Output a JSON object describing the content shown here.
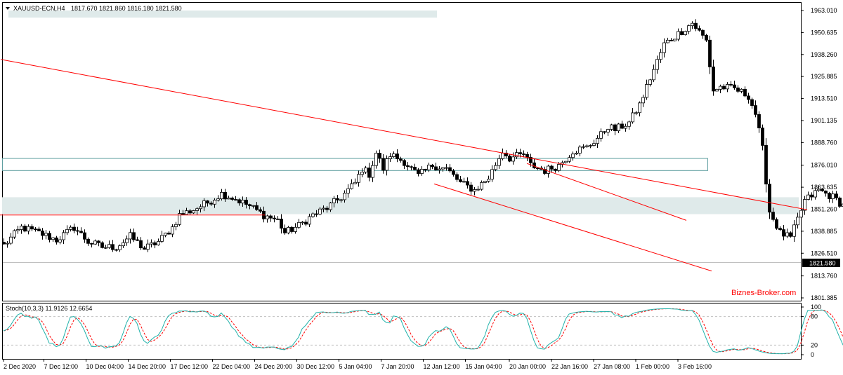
{
  "header": {
    "symbol": "XAUUSD-ECN,H4",
    "ohlc": "1817.670 1821.860 1816.180 1821.580"
  },
  "watermark": "Biznes-Broker.com",
  "chart_data": [
    {
      "type": "candlestick",
      "symbol": "XAUUSD-ECN",
      "timeframe": "H4",
      "last_price": 1821.58,
      "last_price_label": "1821.580",
      "ylim": [
        1801.385,
        1963.01
      ],
      "price_ticks": [
        "1963.010",
        "1950.635",
        "1938.260",
        "1925.885",
        "1913.510",
        "1901.135",
        "1888.760",
        "1876.010",
        "1863.635",
        "1851.260",
        "1838.885",
        "1826.510",
        "1813.760",
        "1801.385"
      ],
      "price_tick_values": [
        1963.01,
        1950.635,
        1938.26,
        1925.885,
        1913.51,
        1901.135,
        1888.76,
        1876.01,
        1863.635,
        1851.26,
        1838.885,
        1826.51,
        1813.76,
        1801.385
      ],
      "time_labels": [
        "2 Dec 2020",
        "7 Dec 12:00",
        "10 Dec 04:00",
        "14 Dec 20:00",
        "17 Dec 12:00",
        "22 Dec 04:00",
        "24 Dec 20:00",
        "30 Dec 12:00",
        "5 Jan 04:00",
        "7 Jan 20:00",
        "12 Jan 12:00",
        "15 Jan 04:00",
        "20 Jan 00:00",
        "22 Jan 16:00",
        "27 Jan 08:00",
        "1 Feb 00:00",
        "3 Feb 16:00"
      ],
      "time_label_index": [
        0,
        11.5,
        23.5,
        35.5,
        47.5,
        59.5,
        71.5,
        83.5,
        95.5,
        107.5,
        119.5,
        131.5,
        144,
        156,
        168,
        180,
        192
      ],
      "path_points": [
        [
          0,
          1831
        ],
        [
          5,
          1841
        ],
        [
          10,
          1838
        ],
        [
          15,
          1834
        ],
        [
          20,
          1841
        ],
        [
          24,
          1833
        ],
        [
          28,
          1830
        ],
        [
          32,
          1830
        ],
        [
          36,
          1836
        ],
        [
          40,
          1829
        ],
        [
          44,
          1833
        ],
        [
          48,
          1841
        ],
        [
          50,
          1848
        ],
        [
          54,
          1851
        ],
        [
          58,
          1855
        ],
        [
          62,
          1860
        ],
        [
          66,
          1857
        ],
        [
          70,
          1853
        ],
        [
          74,
          1848
        ],
        [
          78,
          1845
        ],
        [
          80,
          1838
        ],
        [
          84,
          1842
        ],
        [
          88,
          1848
        ],
        [
          92,
          1852
        ],
        [
          96,
          1858
        ],
        [
          100,
          1866
        ],
        [
          102,
          1874
        ],
        [
          104,
          1871
        ],
        [
          106,
          1883
        ],
        [
          108,
          1874
        ],
        [
          110,
          1882
        ],
        [
          114,
          1878
        ],
        [
          118,
          1870
        ],
        [
          122,
          1876
        ],
        [
          126,
          1874
        ],
        [
          130,
          1866
        ],
        [
          134,
          1862
        ],
        [
          138,
          1869
        ],
        [
          142,
          1884
        ],
        [
          144,
          1880
        ],
        [
          148,
          1882
        ],
        [
          150,
          1876
        ],
        [
          154,
          1873
        ],
        [
          158,
          1876
        ],
        [
          162,
          1884
        ],
        [
          166,
          1886
        ],
        [
          170,
          1893
        ],
        [
          172,
          1898
        ],
        [
          174,
          1896
        ],
        [
          178,
          1900
        ],
        [
          181,
          1910
        ],
        [
          184,
          1925
        ],
        [
          188,
          1944
        ],
        [
          192,
          1950
        ],
        [
          196,
          1956
        ],
        [
          198,
          1951
        ],
        [
          200,
          1946
        ],
        [
          202,
          1918
        ],
        [
          204,
          1920
        ],
        [
          208,
          1919
        ],
        [
          212,
          1915
        ],
        [
          214,
          1905
        ],
        [
          216,
          1885
        ],
        [
          218,
          1850
        ],
        [
          221,
          1838
        ],
        [
          224,
          1835
        ],
        [
          228,
          1856
        ],
        [
          232,
          1862
        ],
        [
          236,
          1858
        ],
        [
          240,
          1852
        ],
        [
          244,
          1848
        ],
        [
          248,
          1846
        ],
        [
          252,
          1838
        ],
        [
          256,
          1836
        ],
        [
          260,
          1834
        ],
        [
          264,
          1832
        ],
        [
          268,
          1835
        ],
        [
          272,
          1840
        ],
        [
          276,
          1842
        ],
        [
          280,
          1844
        ],
        [
          284,
          1846
        ],
        [
          288,
          1859
        ],
        [
          292,
          1866
        ],
        [
          294,
          1872
        ],
        [
          296,
          1872
        ],
        [
          300,
          1864
        ],
        [
          304,
          1858
        ],
        [
          308,
          1852
        ],
        [
          312,
          1854
        ],
        [
          316,
          1852
        ],
        [
          320,
          1856
        ],
        [
          324,
          1854
        ],
        [
          328,
          1850
        ],
        [
          332,
          1846
        ],
        [
          336,
          1842
        ],
        [
          340,
          1838
        ],
        [
          344,
          1844
        ],
        [
          348,
          1848
        ],
        [
          352,
          1852
        ],
        [
          356,
          1864
        ],
        [
          358,
          1874
        ],
        [
          360,
          1858
        ],
        [
          364,
          1866
        ],
        [
          368,
          1860
        ],
        [
          370,
          1856
        ],
        [
          372,
          1850
        ],
        [
          374,
          1836
        ],
        [
          376,
          1832
        ],
        [
          380,
          1834
        ],
        [
          384,
          1838
        ],
        [
          388,
          1836
        ],
        [
          390,
          1830
        ],
        [
          393,
          1820
        ],
        [
          395,
          1822
        ]
      ],
      "series": [
        {
          "name": "",
          "type": "trendline",
          "points": [
            [
              1,
              1935.5
            ],
            [
              1149,
              1851.0
            ]
          ],
          "color": "#ff0000"
        },
        {
          "name": "",
          "type": "trendline",
          "points": [
            [
              618,
              1865.5
            ],
            [
              1013,
              1816.5
            ]
          ],
          "color": "#ff0000"
        },
        {
          "name": "",
          "type": "trendline",
          "points": [
            [
              750,
              1877.0
            ],
            [
              977,
              1845.0
            ]
          ],
          "color": "#ff0000"
        },
        {
          "name": "",
          "type": "horizontal",
          "points": [
            [
              0,
              1848.0
            ],
            [
              377,
              1848.0
            ]
          ],
          "color": "#ff0000"
        }
      ],
      "zones": [
        {
          "type": "rectangle-outline",
          "x_range": [
            3,
            1007
          ],
          "price_range": [
            1873.2,
            1880.0
          ],
          "color": "#5f9ea0"
        },
        {
          "type": "rectangle-filled",
          "x_range": [
            3,
            1137
          ],
          "price_range": [
            1848.5,
            1858.0
          ],
          "color": "#dfeaea"
        },
        {
          "type": "rectangle-filled",
          "x_range": [
            12,
            622
          ],
          "price_range": [
            1959.0,
            1963.0
          ],
          "color": "#dfeaea"
        }
      ],
      "grid": false,
      "background": "#ffffff",
      "candle_up_color": "#000000",
      "candle_down_color": "#000000"
    },
    {
      "type": "line",
      "indicator": "Stoch(10,3,3)",
      "label": "Stoch(10,3,3) 11.9126 12.6654",
      "ylim": [
        0,
        100
      ],
      "levels": [
        80,
        20
      ],
      "ticks": [
        "100",
        "80",
        "20",
        "0"
      ],
      "tick_values": [
        100,
        80,
        20,
        0
      ],
      "series": [
        {
          "name": "",
          "color": "#20b2aa",
          "style": "solid"
        },
        {
          "name": "",
          "color": "#ff0000",
          "style": "dashed"
        }
      ],
      "last_main": 11.9126,
      "last_signal": 12.6654
    }
  ],
  "colors": {
    "axis": "#000000",
    "price_box_bg": "#000000",
    "price_box_text": "#ffffff",
    "current_price_line": "#c0c0c0",
    "watermark": "#ff0000",
    "level_line": "#c0c0c0"
  }
}
